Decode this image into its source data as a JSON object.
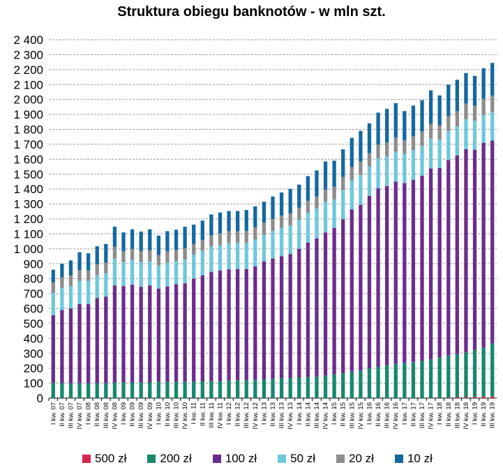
{
  "chart_data": {
    "type": "bar",
    "stacked": true,
    "title": "Struktura obiegu banknotów - w mln szt.",
    "xlabel": "",
    "ylabel": "",
    "ylim": [
      0,
      2400
    ],
    "yticks": [
      0,
      100,
      200,
      300,
      400,
      500,
      600,
      700,
      800,
      900,
      1000,
      1100,
      1200,
      1300,
      1400,
      1500,
      1600,
      1700,
      1800,
      1900,
      2000,
      2100,
      2200,
      2300,
      2400
    ],
    "ytick_labels": [
      "0",
      "100",
      "200",
      "300",
      "400",
      "500",
      "600",
      "700",
      "800",
      "900",
      "1 000",
      "1 100",
      "1 200",
      "1 300",
      "1 400",
      "1 500",
      "1 600",
      "1 700",
      "1 800",
      "1 900",
      "2 000",
      "2 100",
      "2 200",
      "2 300",
      "2 400"
    ],
    "grid": true,
    "legend_position": "bottom",
    "categories": [
      "I kw. 07",
      "II kw. 07",
      "III kw. 07",
      "IV kw. 07",
      "I kw. 08",
      "II kw. 08",
      "III kw. 08",
      "IV kw. 08",
      "I kw. 09",
      "II kw. 09",
      "III kw. 09",
      "IV kw. 09",
      "I kw. 10",
      "II kw. 10",
      "III kw. 10",
      "IV kw. 10",
      "I kw. 11",
      "II kw. 11",
      "III kw. 11",
      "IV kw. 11",
      "I kw. 12",
      "II kw. 12",
      "III kw. 12",
      "IV kw. 12",
      "I kw. 13",
      "II kw. 13",
      "III kw. 13",
      "IV kw. 13",
      "I kw. 14",
      "II kw. 14",
      "III kw. 14",
      "IV kw. 14",
      "I kw. 15",
      "II kw. 15",
      "III kw. 15",
      "IV kw. 15",
      "I kw. 16",
      "II kw. 16",
      "III kw. 16",
      "IV kw. 16",
      "I kw. 17",
      "II kw. 17",
      "III kw. 17",
      "IV kw. 17",
      "I kw. 18",
      "II kw. 18",
      "III kw. 18",
      "IV kw. 18",
      "I kw. 19",
      "II kw. 19",
      "III kw. 19"
    ],
    "series": [
      {
        "name": "500 zł",
        "color": "#d6264a",
        "values": [
          0,
          0,
          0,
          0,
          0,
          0,
          0,
          0,
          0,
          0,
          0,
          0,
          0,
          0,
          0,
          0,
          0,
          0,
          0,
          0,
          0,
          0,
          0,
          0,
          0,
          0,
          0,
          0,
          0,
          0,
          0,
          0,
          0,
          0,
          0,
          0,
          0,
          0,
          0,
          0,
          0,
          0,
          0,
          0,
          2,
          4,
          5,
          7,
          8,
          9,
          10
        ]
      },
      {
        "name": "200 zł",
        "color": "#16876c",
        "values": [
          100,
          100,
          100,
          100,
          100,
          100,
          100,
          105,
          105,
          105,
          105,
          105,
          108,
          108,
          108,
          108,
          110,
          112,
          115,
          115,
          118,
          120,
          120,
          122,
          125,
          130,
          135,
          135,
          140,
          142,
          145,
          150,
          160,
          168,
          178,
          185,
          200,
          210,
          220,
          230,
          235,
          242,
          250,
          258,
          270,
          280,
          290,
          300,
          315,
          330,
          355
        ]
      },
      {
        "name": "100 zł",
        "color": "#6b2d8c",
        "values": [
          455,
          490,
          500,
          530,
          530,
          570,
          580,
          650,
          645,
          655,
          640,
          650,
          625,
          640,
          655,
          660,
          690,
          710,
          730,
          740,
          745,
          745,
          745,
          760,
          790,
          805,
          815,
          830,
          860,
          900,
          925,
          960,
          980,
          1030,
          1085,
          1110,
          1155,
          1195,
          1200,
          1220,
          1205,
          1220,
          1240,
          1280,
          1270,
          1310,
          1330,
          1360,
          1340,
          1370,
          1360
        ]
      },
      {
        "name": "50 zł",
        "color": "#6ec8dc",
        "values": [
          150,
          150,
          150,
          155,
          155,
          155,
          155,
          180,
          160,
          165,
          165,
          160,
          155,
          160,
          155,
          160,
          160,
          165,
          170,
          170,
          175,
          175,
          175,
          180,
          180,
          185,
          190,
          190,
          195,
          200,
          200,
          205,
          190,
          195,
          195,
          200,
          195,
          200,
          200,
          200,
          195,
          200,
          200,
          200,
          190,
          195,
          195,
          200,
          195,
          190,
          190
        ]
      },
      {
        "name": "20 zł",
        "color": "#8c8c8c",
        "values": [
          70,
          70,
          72,
          72,
          70,
          72,
          72,
          78,
          75,
          75,
          75,
          75,
          70,
          75,
          75,
          75,
          72,
          72,
          75,
          78,
          80,
          78,
          80,
          82,
          80,
          80,
          82,
          82,
          80,
          80,
          80,
          80,
          85,
          88,
          90,
          90,
          90,
          92,
          92,
          95,
          92,
          92,
          95,
          98,
          95,
          100,
          102,
          105,
          100,
          105,
          110
        ]
      },
      {
        "name": "10 zł",
        "color": "#1468a0",
        "values": [
          85,
          90,
          100,
          120,
          115,
          120,
          125,
          135,
          125,
          130,
          130,
          140,
          130,
          135,
          135,
          145,
          130,
          130,
          140,
          140,
          135,
          135,
          140,
          140,
          140,
          150,
          155,
          165,
          155,
          165,
          175,
          190,
          175,
          185,
          195,
          205,
          200,
          215,
          225,
          230,
          195,
          205,
          210,
          225,
          200,
          210,
          210,
          205,
          200,
          205,
          220
        ]
      }
    ]
  }
}
